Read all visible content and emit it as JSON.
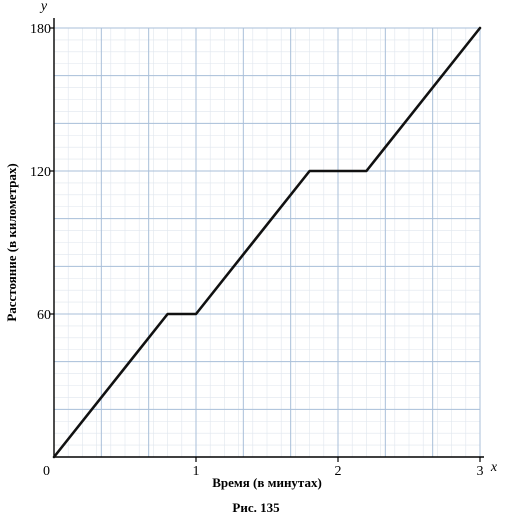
{
  "chart_data": {
    "type": "line",
    "xlabel": "Время (в минутах)",
    "ylabel": "Расстояние (в километрах)",
    "x_axis_letter": "x",
    "y_axis_letter": "y",
    "caption": "Рис. 135",
    "xlim": [
      0,
      3
    ],
    "ylim": [
      0,
      180
    ],
    "x_ticks": [
      0,
      1,
      2,
      3
    ],
    "y_ticks": [
      60,
      120,
      180
    ],
    "origin_label": "0",
    "grid": true,
    "grid_minor_x_step": 0.1,
    "grid_minor_y_step": 5,
    "grid_major_x_step": 0.3333,
    "grid_major_y_step": 20,
    "colors": {
      "line": "#111111",
      "grid_minor": "#dfe6ee",
      "grid_major": "#a9bfd9",
      "axis": "#000000"
    },
    "series": [
      {
        "x": [
          0,
          0.8,
          1.0,
          1.8,
          2.2,
          3.0
        ],
        "y": [
          0,
          60,
          60,
          120,
          120,
          180
        ]
      }
    ]
  }
}
